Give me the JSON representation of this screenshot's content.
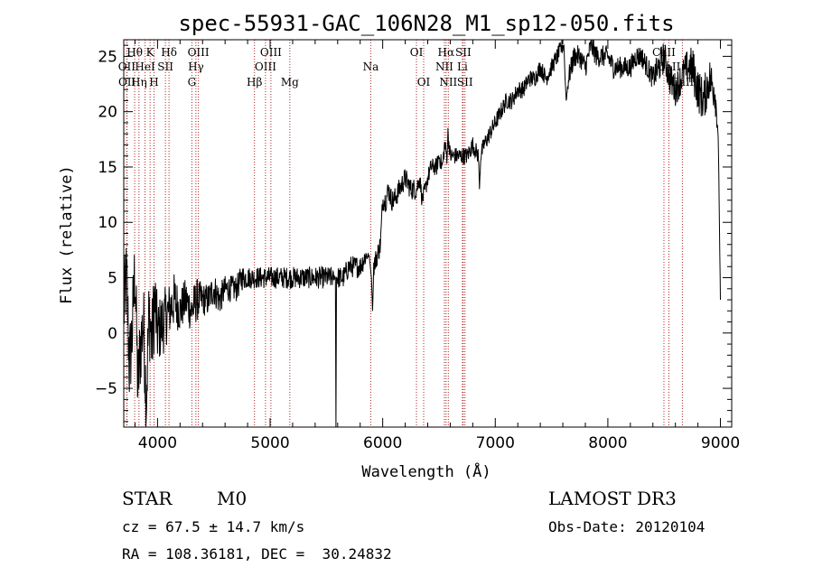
{
  "chart_data": {
    "type": "line",
    "title": "spec-55931-GAC_106N28_M1_sp12-050.fits",
    "xlabel": "Wavelength (Å)",
    "ylabel": "Flux (relative)",
    "xlim": [
      3700,
      9100
    ],
    "ylim": [
      -8.5,
      26.5
    ],
    "xticks": [
      4000,
      5000,
      6000,
      7000,
      8000,
      9000
    ],
    "xtick_labels": [
      "4000",
      "5000",
      "6000",
      "7000",
      "8000",
      "9000"
    ],
    "yticks": [
      -5,
      0,
      5,
      10,
      15,
      20,
      25
    ],
    "ytick_labels": [
      "−5",
      "0",
      "5",
      "10",
      "15",
      "20",
      "25"
    ],
    "series": [
      {
        "name": "flux",
        "x": [
          3700,
          3725,
          3750,
          3775,
          3800,
          3825,
          3850,
          3875,
          3900,
          3925,
          3950,
          3975,
          4000,
          4050,
          4100,
          4150,
          4200,
          4250,
          4300,
          4350,
          4400,
          4450,
          4500,
          4550,
          4600,
          4650,
          4700,
          4750,
          4800,
          4850,
          4900,
          4950,
          5000,
          5050,
          5100,
          5150,
          5200,
          5250,
          5300,
          5350,
          5400,
          5450,
          5500,
          5550,
          5580,
          5585,
          5590,
          5600,
          5650,
          5700,
          5750,
          5800,
          5850,
          5880,
          5900,
          5910,
          5920,
          5950,
          5980,
          6000,
          6030,
          6050,
          6080,
          6100,
          6150,
          6200,
          6250,
          6300,
          6330,
          6350,
          6380,
          6400,
          6430,
          6450,
          6480,
          6500,
          6530,
          6550,
          6570,
          6580,
          6600,
          6620,
          6650,
          6700,
          6750,
          6800,
          6850,
          6860,
          6870,
          6900,
          6950,
          7000,
          7050,
          7100,
          7150,
          7200,
          7250,
          7300,
          7350,
          7400,
          7450,
          7500,
          7550,
          7600,
          7610,
          7620,
          7630,
          7650,
          7700,
          7750,
          7800,
          7850,
          7900,
          7950,
          8000,
          8050,
          8100,
          8150,
          8200,
          8250,
          8300,
          8350,
          8400,
          8450,
          8500,
          8550,
          8600,
          8650,
          8700,
          8750,
          8800,
          8850,
          8900,
          8950,
          8980,
          9000
        ],
        "y": [
          2,
          5,
          -3,
          0,
          6,
          -5,
          -1,
          1,
          -6,
          2,
          -1,
          3,
          0,
          1,
          2,
          3,
          2,
          3,
          2,
          3,
          3,
          3,
          4,
          3,
          4,
          4,
          4,
          5,
          5,
          5,
          5,
          5,
          5,
          5,
          5,
          5,
          5,
          5,
          5,
          5,
          5,
          5,
          5,
          5,
          5,
          -9,
          5,
          5,
          5,
          6,
          6,
          6,
          7,
          7,
          5,
          2,
          6,
          7,
          8,
          12,
          12,
          13,
          12,
          12,
          13,
          14,
          13,
          13,
          14,
          12,
          13,
          14,
          15,
          15,
          15,
          16,
          15,
          17,
          16,
          18,
          16,
          16,
          16,
          16,
          16,
          17,
          16,
          13,
          16,
          17,
          18,
          19,
          20,
          21,
          21,
          22,
          22,
          23,
          23,
          24,
          23,
          24,
          25,
          26,
          26,
          23,
          21,
          23,
          25,
          25,
          24,
          26,
          25,
          25,
          25,
          24,
          24,
          24,
          24,
          25,
          25,
          24,
          23,
          24,
          25,
          23,
          22,
          23,
          24,
          24,
          22,
          21,
          23,
          22,
          18,
          3
        ],
        "noise": [
          4,
          4,
          4,
          4,
          4,
          4,
          4,
          4,
          4,
          4,
          4,
          4,
          3,
          3,
          2.5,
          2.5,
          2,
          2,
          2,
          2,
          1.5,
          1.5,
          1.5,
          1.5,
          1.2,
          1.2,
          1.2,
          1.2,
          1,
          1,
          1,
          1,
          1,
          1,
          1,
          1,
          1,
          1,
          1,
          1,
          1,
          1,
          1,
          1,
          0,
          0,
          0,
          1,
          1,
          1,
          1,
          1,
          1,
          0,
          0,
          0,
          1,
          1,
          1,
          1,
          1,
          1,
          1,
          1,
          1,
          1,
          1,
          1,
          0.8,
          0.8,
          0.8,
          0.8,
          0.8,
          0.8,
          0.8,
          0.8,
          0.8,
          0.8,
          0.8,
          0.8,
          0.8,
          0.8,
          0.8,
          0.8,
          0.8,
          0.8,
          0.8,
          0,
          0.8,
          0.8,
          0.8,
          0.8,
          0.8,
          0.8,
          0.8,
          0.8,
          0.8,
          0.8,
          0.8,
          0.8,
          0.8,
          0.8,
          0.8,
          0.8,
          0,
          0,
          0,
          1,
          1,
          1,
          1,
          1,
          1,
          1,
          1,
          1,
          1,
          1,
          1,
          1,
          1,
          1,
          1,
          1.5,
          1.5,
          1.5,
          1.5,
          1.5,
          1.5,
          2,
          2,
          2,
          2,
          2,
          0.5,
          0
        ]
      }
    ],
    "spectral_lines": [
      {
        "label": "Hθ",
        "x": 3797,
        "row": 1
      },
      {
        "label": "OII",
        "x": 3727,
        "row": 2
      },
      {
        "label": "OII",
        "x": 3729,
        "row": 3
      },
      {
        "label": "K",
        "x": 3934,
        "row": 1
      },
      {
        "label": "HeI",
        "x": 3889,
        "row": 2
      },
      {
        "label": "Hη",
        "x": 3835,
        "row": 3
      },
      {
        "label": "Hδ",
        "x": 4102,
        "row": 1
      },
      {
        "label": "SII",
        "x": 4070,
        "row": 2
      },
      {
        "label": "H",
        "x": 3969,
        "row": 3
      },
      {
        "label": "OIII",
        "x": 4363,
        "row": 1
      },
      {
        "label": "Hγ",
        "x": 4341,
        "row": 2
      },
      {
        "label": "G",
        "x": 4305,
        "row": 3
      },
      {
        "label": "OIII",
        "x": 5007,
        "row": 1
      },
      {
        "label": "OIII",
        "x": 4959,
        "row": 2
      },
      {
        "label": "Hβ",
        "x": 4861,
        "row": 3
      },
      {
        "label": "Mg",
        "x": 5175,
        "row": 3
      },
      {
        "label": "Na",
        "x": 5894,
        "row": 2
      },
      {
        "label": "OI",
        "x": 6300,
        "row": 1
      },
      {
        "label": "OI",
        "x": 6364,
        "row": 3
      },
      {
        "label": "Hα",
        "x": 6563,
        "row": 1
      },
      {
        "label": "SII",
        "x": 6716,
        "row": 1
      },
      {
        "label": "NII",
        "x": 6548,
        "row": 2
      },
      {
        "label": "Li",
        "x": 6708,
        "row": 2
      },
      {
        "label": "NII",
        "x": 6583,
        "row": 3
      },
      {
        "label": "SII",
        "x": 6731,
        "row": 3
      },
      {
        "label": "CaII",
        "x": 8498,
        "row": 1
      },
      {
        "label": "CaII",
        "x": 8542,
        "row": 2
      },
      {
        "label": "CaII",
        "x": 8662,
        "row": 3
      }
    ]
  },
  "info": {
    "class": "STAR",
    "subclass": "M0",
    "survey": "LAMOST DR3",
    "cz": "cz = 67.5 ± 14.7 km/s",
    "obs_date": "Obs-Date: 20120104",
    "coords": "RA = 108.36181, DEC =  30.24832"
  },
  "colors": {
    "line_marker": "#b22222",
    "spectrum": "#000000"
  }
}
